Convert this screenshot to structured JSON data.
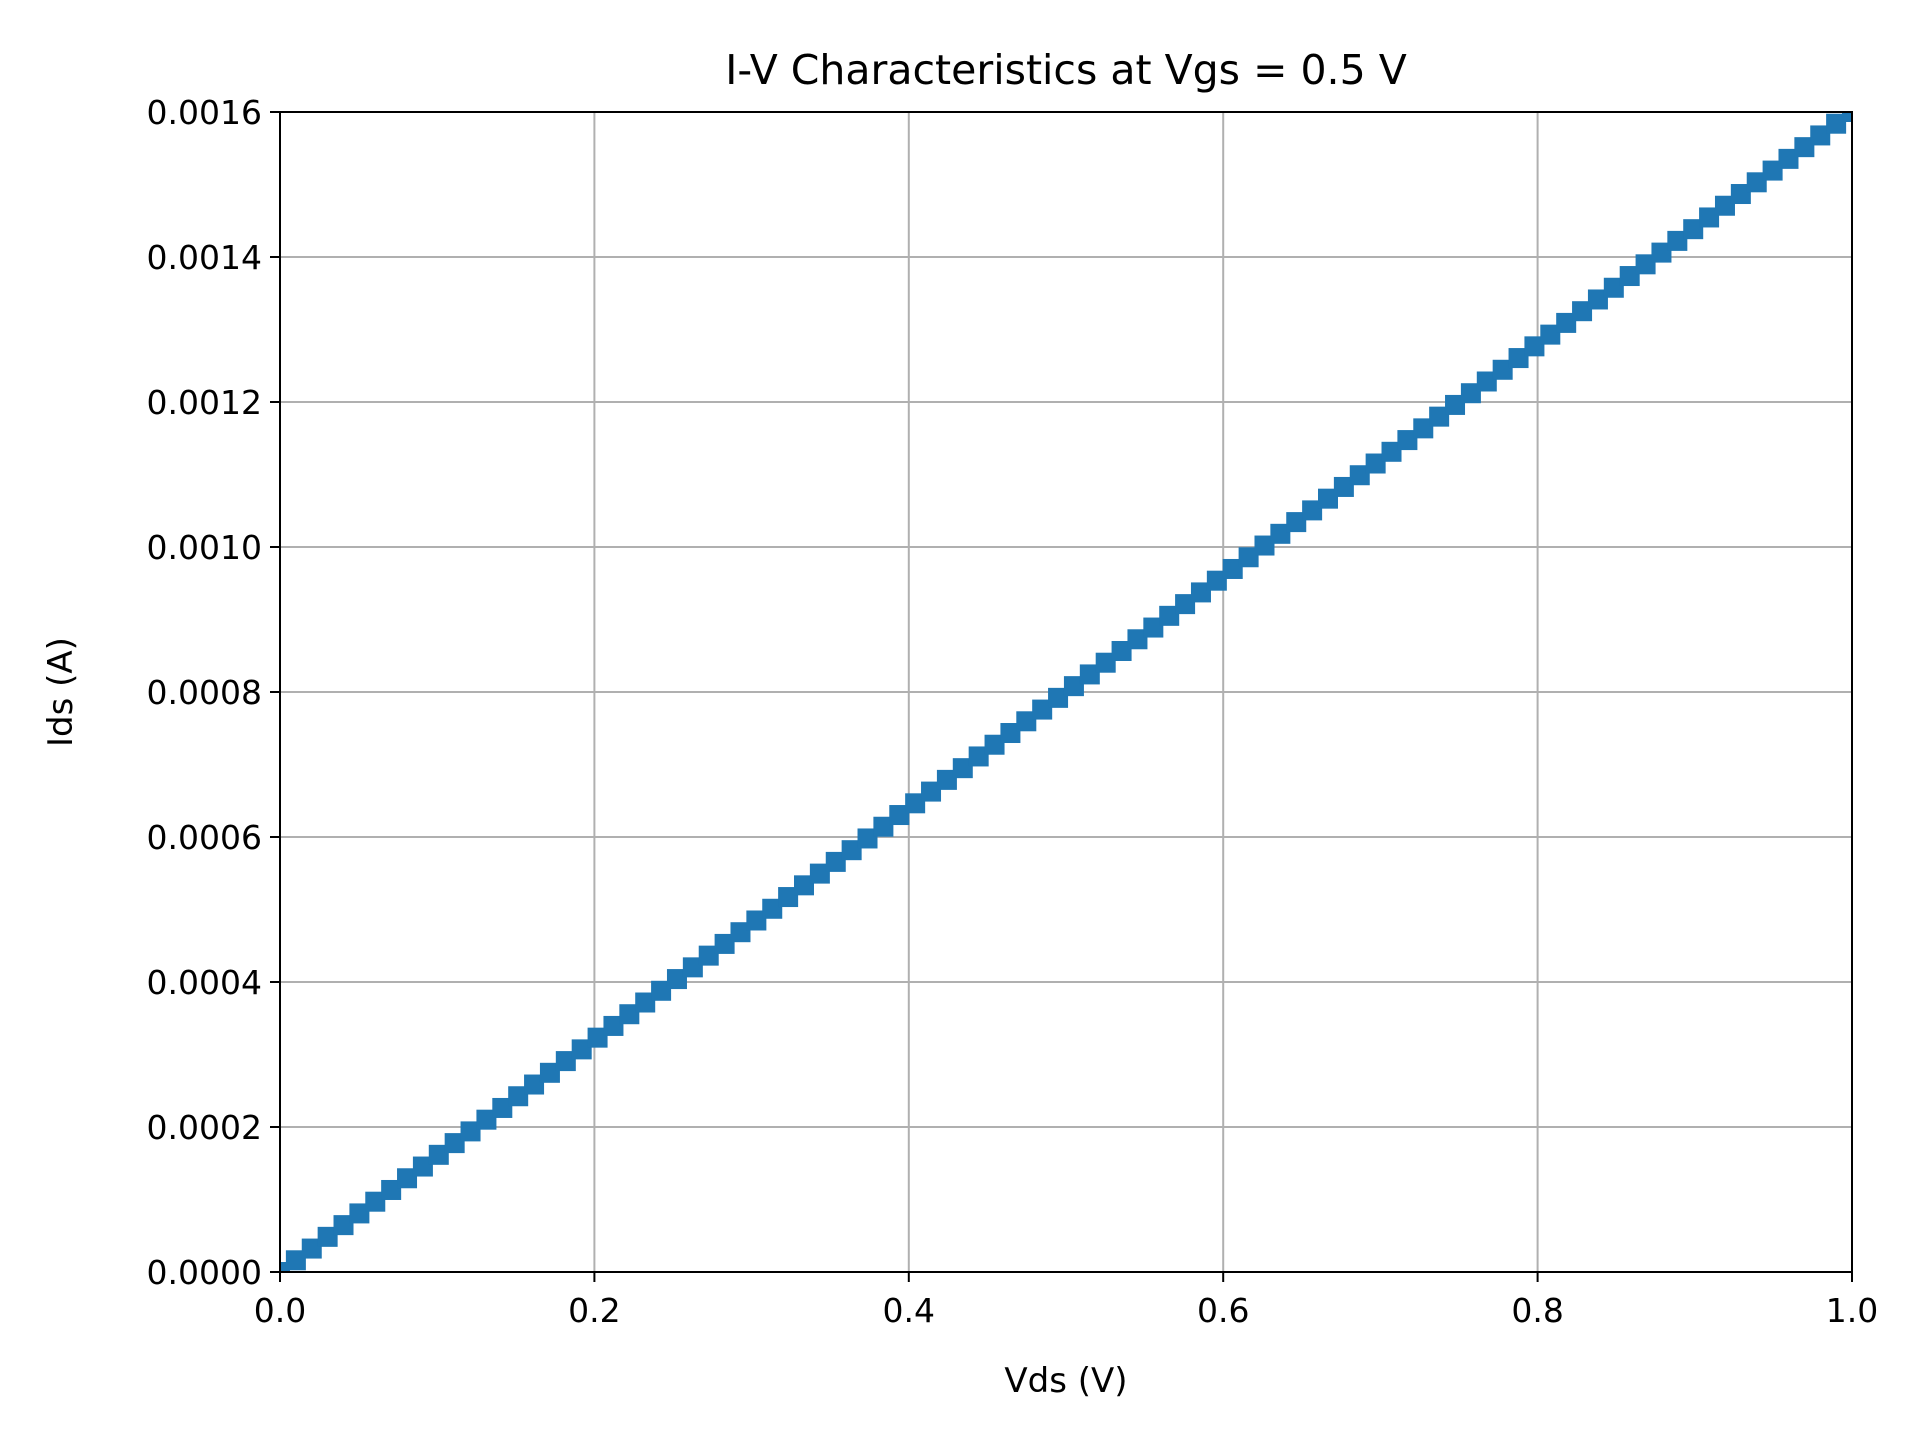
{
  "chart_data": {
    "type": "scatter",
    "title": "I-V Characteristics at Vgs = 0.5 V",
    "xlabel": "Vds (V)",
    "ylabel": "Ids (A)",
    "xlim": [
      0.0,
      1.0
    ],
    "ylim": [
      0.0,
      0.0016
    ],
    "x_ticks": [
      "0.0",
      "0.2",
      "0.4",
      "0.6",
      "0.8",
      "1.0"
    ],
    "y_ticks": [
      "0.0000",
      "0.0002",
      "0.0004",
      "0.0006",
      "0.0008",
      "0.0010",
      "0.0012",
      "0.0014",
      "0.0016"
    ],
    "grid": true,
    "marker": "square",
    "series": [
      {
        "color": "#1f77b4",
        "x_start": 0.0,
        "x_end": 1.0,
        "n_points": 100,
        "y_start": 0.0,
        "y_end": 0.0016
      }
    ]
  }
}
